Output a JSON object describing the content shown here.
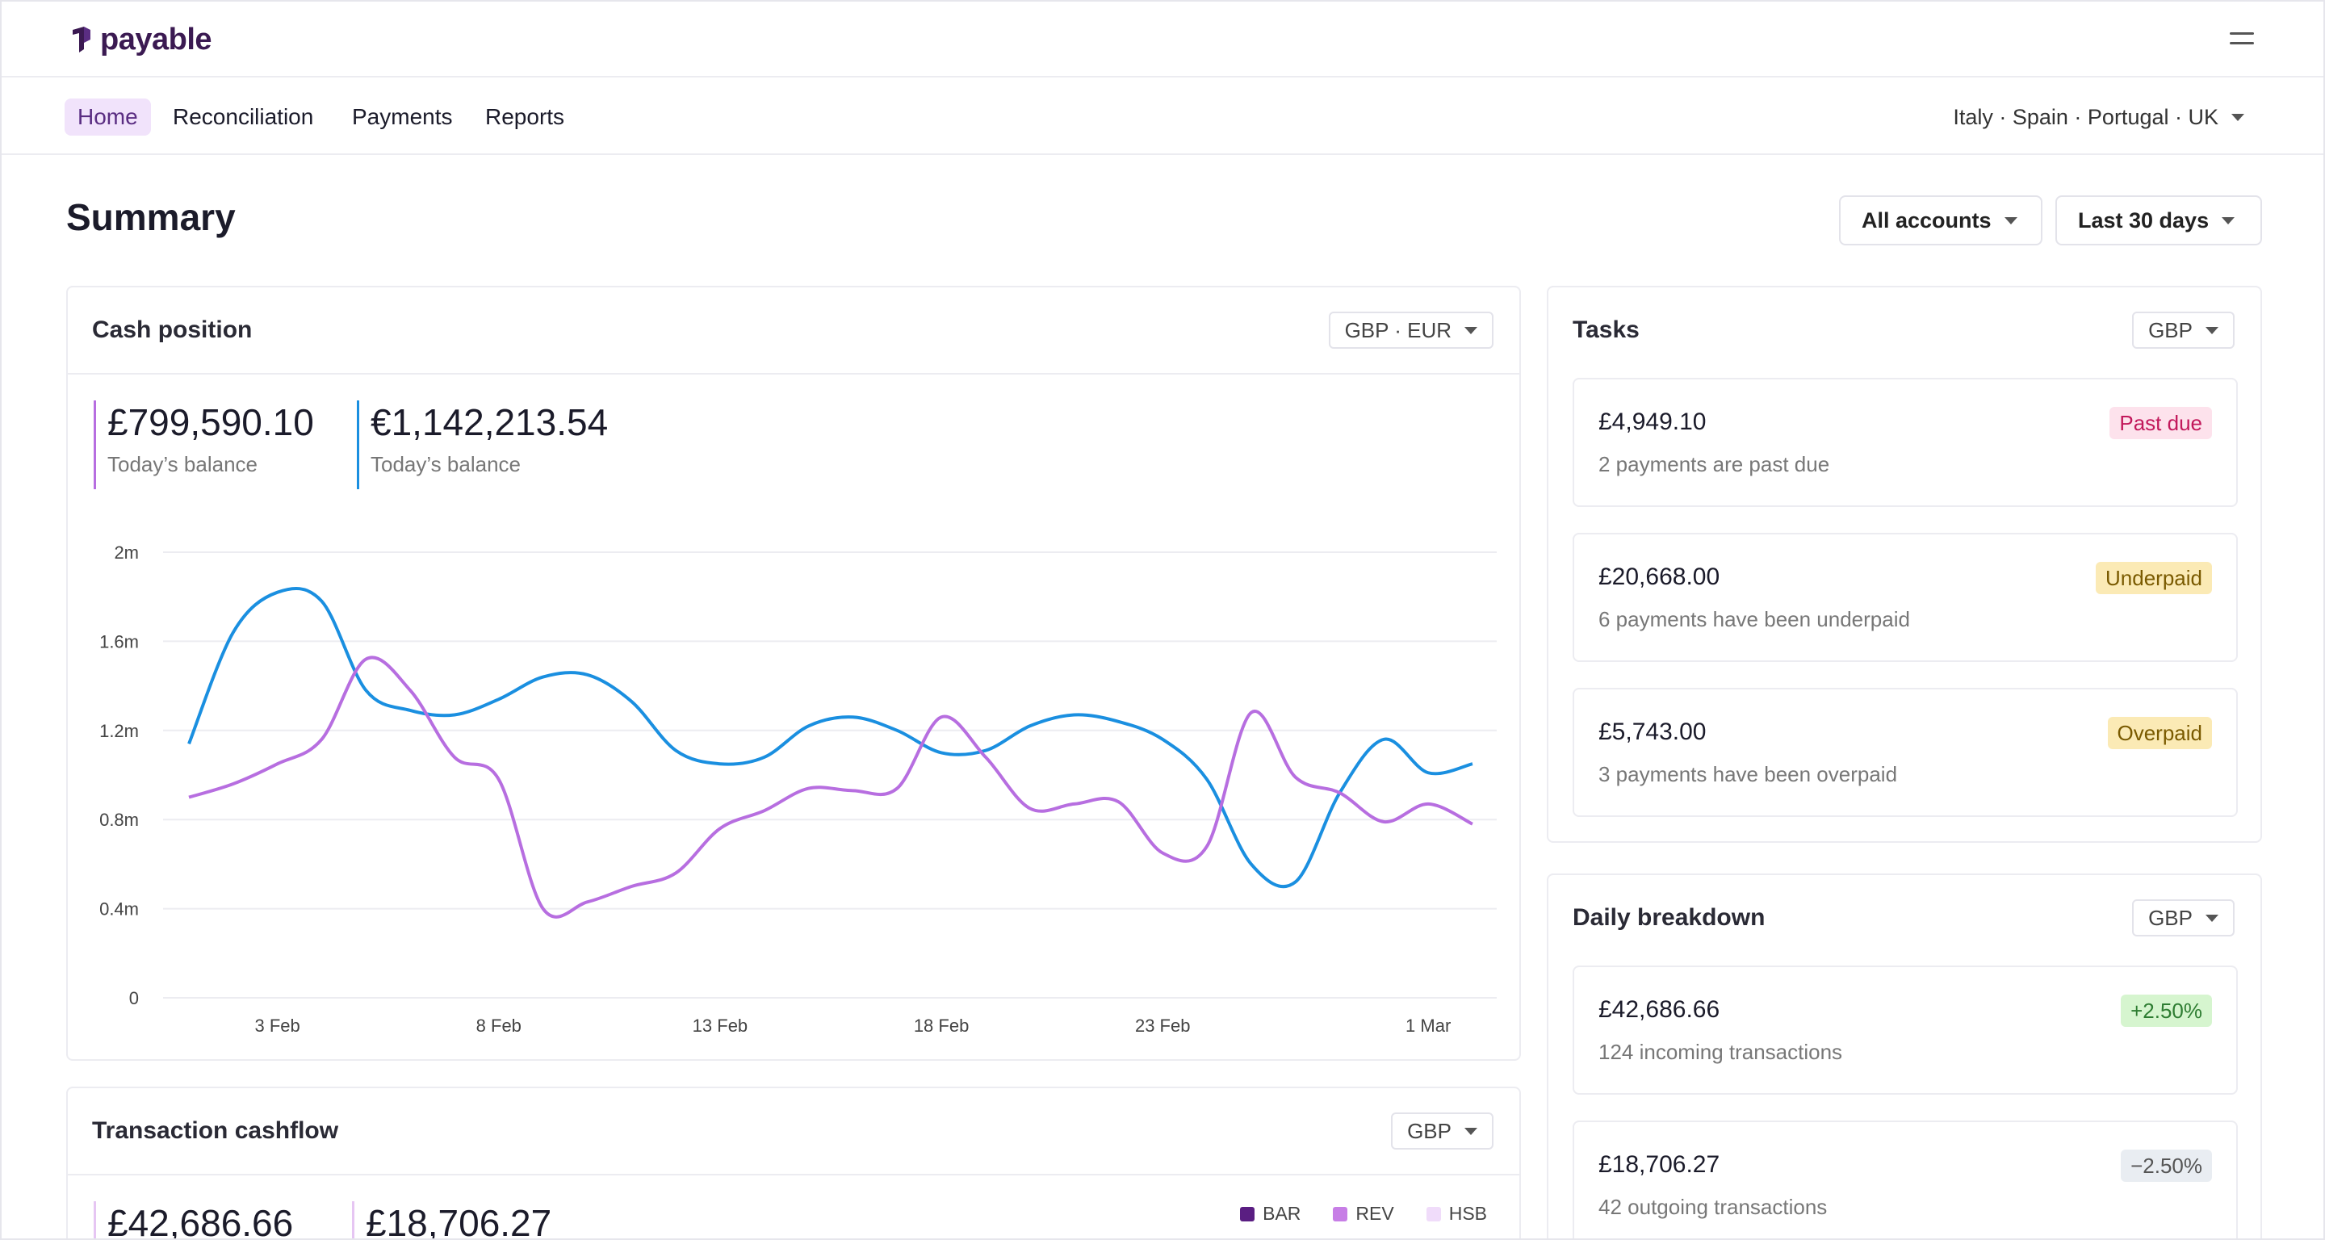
{
  "app": {
    "brand": "payable"
  },
  "nav": {
    "items": [
      {
        "label": "Home",
        "active": true
      },
      {
        "label": "Reconciliation",
        "active": false
      },
      {
        "label": "Payments",
        "active": false
      },
      {
        "label": "Reports",
        "active": false
      }
    ],
    "region": "Italy · Spain · Portugal · UK"
  },
  "summary": {
    "title": "Summary",
    "accounts_filter": "All accounts",
    "period_filter": "Last 30 days"
  },
  "cash_position": {
    "title": "Cash position",
    "currency_select": "GBP · EUR",
    "balances": [
      {
        "amount": "£799,590.10",
        "label": "Today’s balance",
        "color": "#b76ee0"
      },
      {
        "amount": "€1,142,213.54",
        "label": "Today’s balance",
        "color": "#1a8fe0"
      }
    ]
  },
  "chart_data": {
    "type": "line",
    "title": "",
    "xlabel": "",
    "ylabel": "",
    "ylim": [
      0,
      2000000
    ],
    "y_ticks": [
      "0",
      "0.4m",
      "0.8m",
      "1.2m",
      "1.6m",
      "2m"
    ],
    "x_ticks": [
      "3 Feb",
      "8 Feb",
      "13 Feb",
      "18 Feb",
      "23 Feb",
      "1 Mar"
    ],
    "x_tick_days": [
      3,
      8,
      13,
      18,
      23,
      29
    ],
    "x": [
      1,
      2,
      3,
      4,
      5,
      6,
      7,
      8,
      9,
      10,
      11,
      12,
      13,
      14,
      15,
      16,
      17,
      18,
      19,
      20,
      21,
      22,
      23,
      24,
      25,
      26,
      27,
      28,
      29,
      30
    ],
    "grid": true,
    "series": [
      {
        "color": "#1a8fe0",
        "values": [
          1140000,
          1640000,
          1820000,
          1780000,
          1380000,
          1290000,
          1270000,
          1340000,
          1440000,
          1450000,
          1330000,
          1110000,
          1050000,
          1080000,
          1220000,
          1260000,
          1200000,
          1100000,
          1110000,
          1220000,
          1270000,
          1240000,
          1160000,
          980000,
          600000,
          520000,
          920000,
          1160000,
          1010000,
          1050000
        ]
      },
      {
        "color": "#b76ee0",
        "values": [
          900000,
          960000,
          1050000,
          1160000,
          1520000,
          1380000,
          1080000,
          980000,
          400000,
          430000,
          500000,
          560000,
          760000,
          840000,
          940000,
          930000,
          940000,
          1260000,
          1080000,
          850000,
          870000,
          880000,
          650000,
          680000,
          1280000,
          990000,
          920000,
          790000,
          870000,
          780000
        ]
      }
    ]
  },
  "tasks": {
    "title": "Tasks",
    "currency_select": "GBP",
    "items": [
      {
        "amount": "£4,949.10",
        "desc": "2 payments are past due",
        "badge": "Past due",
        "badge_bg": "#fde2ec",
        "badge_fg": "#c2185b"
      },
      {
        "amount": "£20,668.00",
        "desc": "6 payments have been underpaid",
        "badge": "Underpaid",
        "badge_bg": "#fbeab5",
        "badge_fg": "#7a5a00"
      },
      {
        "amount": "£5,743.00",
        "desc": "3 payments have been overpaid",
        "badge": "Overpaid",
        "badge_bg": "#fbeab5",
        "badge_fg": "#7a5a00"
      }
    ]
  },
  "daily_breakdown": {
    "title": "Daily breakdown",
    "currency_select": "GBP",
    "items": [
      {
        "amount": "£42,686.66",
        "desc": "124 incoming transactions",
        "badge": "+2.50%",
        "badge_bg": "#d6f5cf",
        "badge_fg": "#2e7d32"
      },
      {
        "amount": "£18,706.27",
        "desc": "42 outgoing transactions",
        "badge": "−2.50%",
        "badge_bg": "#e9edf2",
        "badge_fg": "#555"
      }
    ]
  },
  "transaction_cashflow": {
    "title": "Transaction cashflow",
    "currency_select": "GBP",
    "balances": [
      {
        "amount": "£42,686.66",
        "color": "#e6c6f3"
      },
      {
        "amount": "£18,706.27",
        "color": "#e6c6f3"
      }
    ],
    "legend": [
      {
        "label": "BAR",
        "color": "#5a1e82"
      },
      {
        "label": "REV",
        "color": "#c77ee6"
      },
      {
        "label": "HSB",
        "color": "#f0dcfa"
      }
    ]
  }
}
